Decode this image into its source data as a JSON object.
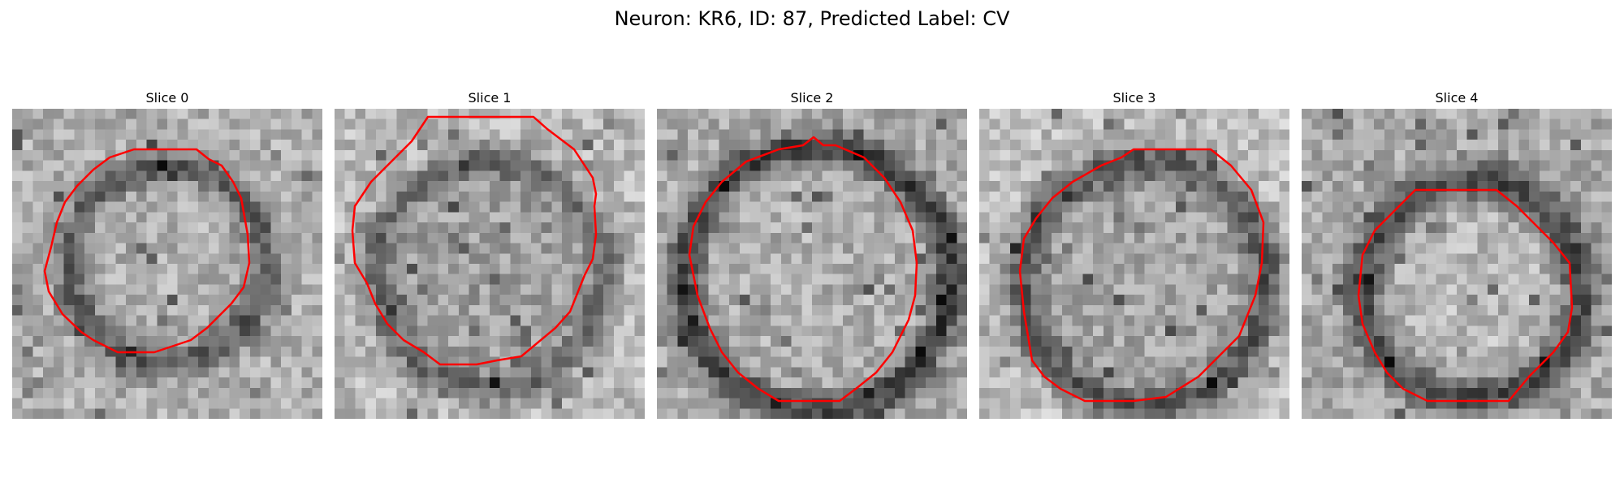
{
  "figure": {
    "title": "Neuron: KR6, ID: 87, Predicted Label: CV"
  },
  "colors": {
    "contour": "#ff0000",
    "background": "#ffffff"
  },
  "panels": [
    {
      "title": "Slice 0"
    },
    {
      "title": "Slice 1"
    },
    {
      "title": "Slice 2"
    },
    {
      "title": "Slice 3"
    },
    {
      "title": "Slice 4"
    }
  ]
}
